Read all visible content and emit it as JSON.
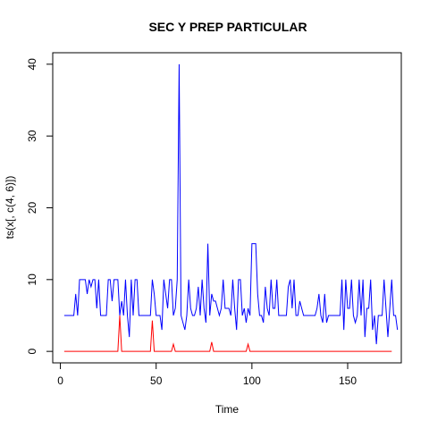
{
  "chart_data": {
    "type": "line",
    "title": "SEC Y PREP PARTICULAR",
    "xlabel": "Time",
    "ylabel": "ts(x[, c(4, 6)])",
    "xlim": [
      -4,
      178
    ],
    "ylim": [
      -1.6,
      41.6
    ],
    "xticks": [
      0,
      50,
      100,
      150
    ],
    "yticks": [
      0,
      10,
      20,
      30,
      40
    ],
    "grid": false,
    "series": [
      {
        "color": "#0000ff",
        "start": 2,
        "values": [
          5,
          5,
          5,
          5,
          5,
          5,
          8,
          5,
          10,
          10,
          10,
          10,
          8,
          10,
          9,
          10,
          10,
          6,
          10,
          5,
          5,
          5,
          5,
          10,
          10,
          7,
          10,
          10,
          10,
          5,
          7,
          5,
          10,
          5,
          2,
          10,
          5,
          10,
          10,
          5,
          5,
          5,
          5,
          5,
          5,
          5,
          10,
          8,
          5,
          5,
          5,
          3,
          10,
          8,
          6,
          10,
          10,
          5,
          6,
          10,
          40,
          5,
          4,
          3,
          5,
          10,
          6,
          5,
          5,
          6,
          9,
          5,
          10,
          6,
          4,
          15,
          5,
          8,
          7,
          7,
          6,
          5,
          6,
          10,
          6,
          6,
          6,
          5,
          10,
          6,
          3,
          10,
          10,
          5,
          6,
          4,
          6,
          5,
          15,
          15,
          15,
          8,
          5,
          5,
          4,
          9,
          6,
          5,
          10,
          6,
          6,
          10,
          5,
          5,
          5,
          5,
          5,
          9,
          10,
          6,
          10,
          5,
          5,
          7,
          6,
          5,
          5,
          5,
          5,
          5,
          5,
          5,
          6,
          8,
          5,
          4,
          8,
          4,
          5,
          5,
          5,
          5,
          5,
          5,
          5,
          10,
          3,
          10,
          6,
          6,
          10,
          5,
          4,
          5,
          10,
          5,
          10,
          2,
          6,
          6,
          10,
          3,
          5,
          1,
          5,
          5,
          5,
          10,
          6,
          2,
          6,
          10,
          5,
          5,
          3
        ]
      },
      {
        "color": "#ff0000",
        "start": 2,
        "spikes": [
          [
            31,
            5
          ],
          [
            48,
            4.3
          ],
          [
            59,
            1
          ],
          [
            79,
            1.3
          ],
          [
            98,
            1
          ]
        ],
        "max_x": 173
      }
    ]
  }
}
